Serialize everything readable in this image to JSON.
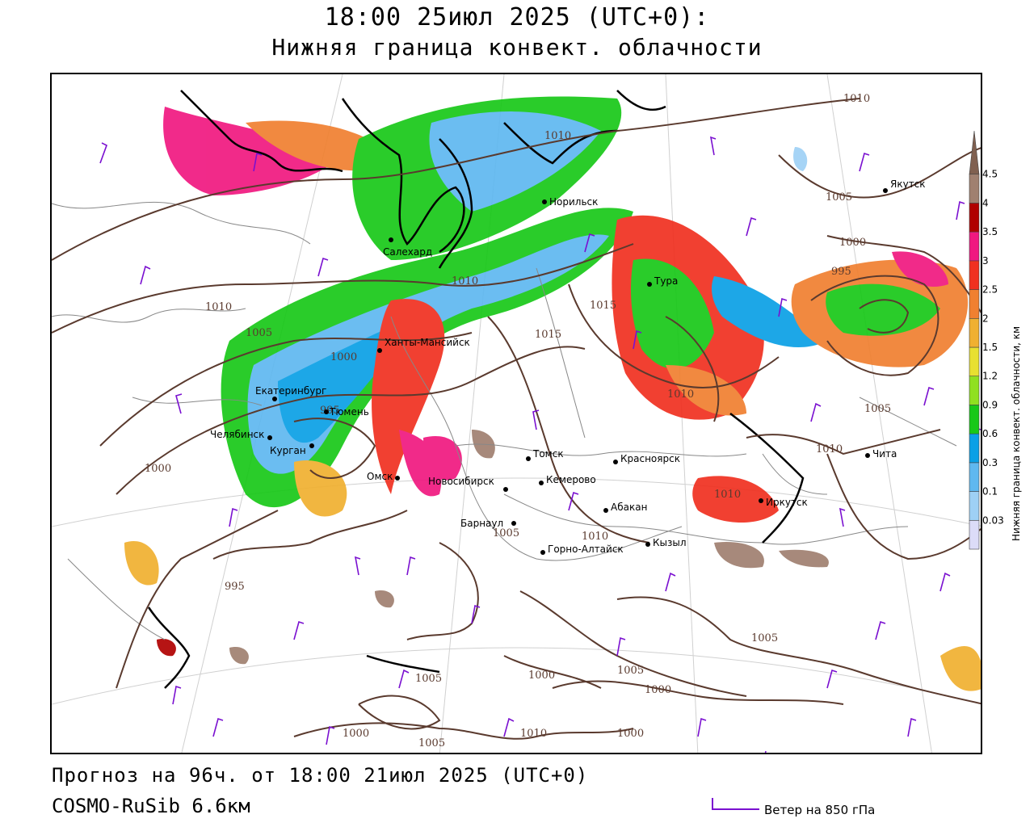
{
  "header": {
    "title_line1": "18:00 25июл 2025 (UTC+0):",
    "title_line2": "Нижняя граница конвект. облачности"
  },
  "footer": {
    "forecast": "Прогноз на 96ч. от 18:00 21июл 2025 (UTC+0)",
    "model": "COSMO-RuSib 6.6км",
    "wind_legend": "Ветер на 850 гПа"
  },
  "legend": {
    "title": "Нижняя граница конвект. облачности, км",
    "levels": [
      "0.03",
      "0.1",
      "0.3",
      "0.6",
      "0.9",
      "1.2",
      "1.5",
      "2",
      "2.5",
      "3",
      "3.5",
      "4",
      "4.5"
    ],
    "colors": [
      "#dcdcf8",
      "#9ed0f5",
      "#5fb8f0",
      "#0aa0e6",
      "#18c818",
      "#90e020",
      "#e8e030",
      "#f0b030",
      "#f08030",
      "#f03020",
      "#f01880",
      "#b00000",
      "#a08070",
      "#806050"
    ]
  },
  "colors": {
    "isobar": "#5a3a2e",
    "wind": "#7a10d0",
    "border": "#888888"
  },
  "cities": [
    {
      "name": "Салехард"
    },
    {
      "name": "Норильск"
    },
    {
      "name": "Якутск"
    },
    {
      "name": "Тура"
    },
    {
      "name": "Ханты-Мансийск"
    },
    {
      "name": "Екатеринбург"
    },
    {
      "name": "Тюмень"
    },
    {
      "name": "Челябинск"
    },
    {
      "name": "Курган"
    },
    {
      "name": "Омск"
    },
    {
      "name": "Новосибирск"
    },
    {
      "name": "Томск"
    },
    {
      "name": "Кемерово"
    },
    {
      "name": "Красноярск"
    },
    {
      "name": "Абакан"
    },
    {
      "name": "Барнаул"
    },
    {
      "name": "Горно-Алтайск"
    },
    {
      "name": "Кызыл"
    },
    {
      "name": "Иркутск"
    },
    {
      "name": "Чита"
    }
  ],
  "isobar_labels": [
    "1010",
    "1010",
    "1005",
    "1000",
    "995",
    "1010",
    "1005",
    "1000",
    "995",
    "1010",
    "1015",
    "1015",
    "1010",
    "1010",
    "1005",
    "1010",
    "1000",
    "1005",
    "995",
    "1005",
    "1010",
    "1005",
    "1000",
    "1000",
    "1005",
    "1000",
    "1005",
    "1000",
    "1010"
  ]
}
